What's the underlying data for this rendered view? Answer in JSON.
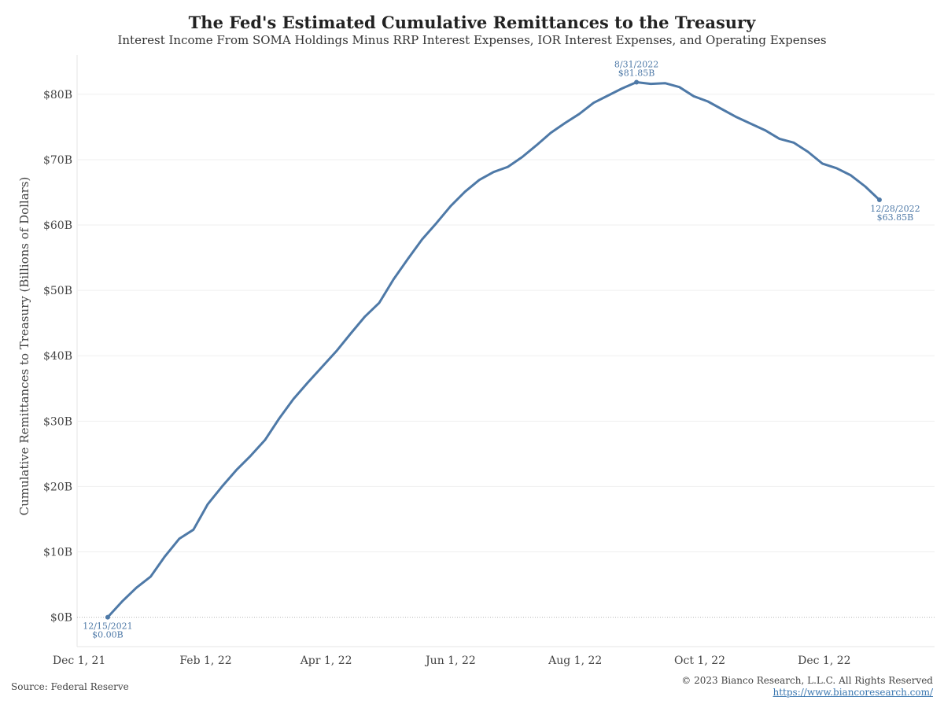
{
  "header": {
    "title": "The Fed's Estimated Cumulative Remittances to the Treasury",
    "subtitle": "Interest Income From SOMA Holdings Minus RRP Interest Expenses, IOR Interest Expenses, and Operating Expenses"
  },
  "footer": {
    "source": "Source: Federal Reserve",
    "copyright": "© 2023 Bianco Research, L.L.C. All Rights Reserved",
    "url": "https://www.biancoresearch.com/"
  },
  "chart_data": {
    "type": "line",
    "ylabel": "Cumulative Remittances to Treasury (Billions of Dollars)",
    "xlabel": "",
    "ylim": [
      -4.5,
      86
    ],
    "xlim": [
      "2021-11-30",
      "2023-01-24"
    ],
    "y_ticks": [
      0,
      10,
      20,
      30,
      40,
      50,
      60,
      70,
      80
    ],
    "y_tick_labels": [
      "$0B",
      "$10B",
      "$20B",
      "$30B",
      "$40B",
      "$50B",
      "$60B",
      "$70B",
      "$80B"
    ],
    "x_ticks": [
      "2021-12-01",
      "2022-02-01",
      "2022-04-01",
      "2022-06-01",
      "2022-08-01",
      "2022-10-01",
      "2022-12-01"
    ],
    "x_tick_labels": [
      "Dec 1, 21",
      "Feb 1, 22",
      "Apr 1, 22",
      "Jun 1, 22",
      "Aug 1, 22",
      "Oct 1, 22",
      "Dec 1, 22"
    ],
    "grid": true,
    "color": "#4e79a7",
    "series": [
      {
        "name": "",
        "points": [
          [
            "2021-12-15",
            0.0
          ],
          [
            "2021-12-22",
            2.4
          ],
          [
            "2021-12-29",
            4.5
          ],
          [
            "2022-01-05",
            6.2
          ],
          [
            "2022-01-12",
            9.3
          ],
          [
            "2022-01-19",
            12.0
          ],
          [
            "2022-01-26",
            13.4
          ],
          [
            "2022-02-02",
            17.3
          ],
          [
            "2022-02-09",
            20.0
          ],
          [
            "2022-02-16",
            22.5
          ],
          [
            "2022-02-23",
            24.7
          ],
          [
            "2022-03-02",
            27.1
          ],
          [
            "2022-03-09",
            30.4
          ],
          [
            "2022-03-16",
            33.4
          ],
          [
            "2022-03-23",
            35.9
          ],
          [
            "2022-03-30",
            38.3
          ],
          [
            "2022-04-06",
            40.7
          ],
          [
            "2022-04-13",
            43.4
          ],
          [
            "2022-04-20",
            46.0
          ],
          [
            "2022-04-27",
            48.1
          ],
          [
            "2022-05-04",
            51.7
          ],
          [
            "2022-05-11",
            54.8
          ],
          [
            "2022-05-18",
            57.8
          ],
          [
            "2022-05-25",
            60.3
          ],
          [
            "2022-06-01",
            62.9
          ],
          [
            "2022-06-08",
            65.1
          ],
          [
            "2022-06-15",
            66.9
          ],
          [
            "2022-06-22",
            68.1
          ],
          [
            "2022-06-29",
            68.9
          ],
          [
            "2022-07-06",
            70.4
          ],
          [
            "2022-07-13",
            72.2
          ],
          [
            "2022-07-20",
            74.1
          ],
          [
            "2022-07-27",
            75.6
          ],
          [
            "2022-08-03",
            77.0
          ],
          [
            "2022-08-10",
            78.7
          ],
          [
            "2022-08-17",
            79.8
          ],
          [
            "2022-08-24",
            80.9
          ],
          [
            "2022-08-31",
            81.85
          ],
          [
            "2022-09-07",
            81.6
          ],
          [
            "2022-09-14",
            81.7
          ],
          [
            "2022-09-21",
            81.1
          ],
          [
            "2022-09-28",
            79.7
          ],
          [
            "2022-10-05",
            78.9
          ],
          [
            "2022-10-12",
            77.7
          ],
          [
            "2022-10-19",
            76.5
          ],
          [
            "2022-10-26",
            75.5
          ],
          [
            "2022-11-02",
            74.5
          ],
          [
            "2022-11-09",
            73.2
          ],
          [
            "2022-11-16",
            72.6
          ],
          [
            "2022-11-23",
            71.2
          ],
          [
            "2022-11-30",
            69.4
          ],
          [
            "2022-12-07",
            68.7
          ],
          [
            "2022-12-14",
            67.6
          ],
          [
            "2022-12-21",
            65.9
          ],
          [
            "2022-12-28",
            63.85
          ]
        ]
      }
    ],
    "annotations": [
      {
        "date_label": "12/15/2021",
        "value_label": "$0.00B",
        "x": "2021-12-15",
        "y": 0.0,
        "position": "below"
      },
      {
        "date_label": "8/31/2022",
        "value_label": "$81.85B",
        "x": "2022-08-31",
        "y": 81.85,
        "position": "above"
      },
      {
        "date_label": "12/28/2022",
        "value_label": "$63.85B",
        "x": "2022-12-28",
        "y": 63.85,
        "position": "below"
      }
    ]
  }
}
